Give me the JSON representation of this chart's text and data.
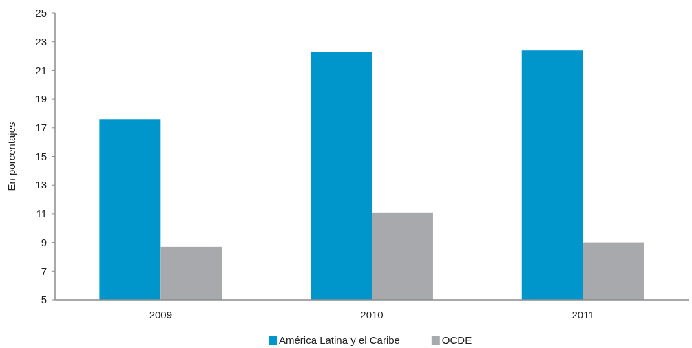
{
  "chart_data": {
    "type": "bar",
    "ylabel": "En porcentajes",
    "categories": [
      "2009",
      "2010",
      "2011"
    ],
    "series": [
      {
        "name": "América Latina y el Caribe",
        "color": "#0096cc",
        "values": [
          17.6,
          22.3,
          22.4
        ]
      },
      {
        "name": "OCDE",
        "color": "#a7a9ac",
        "values": [
          8.7,
          11.1,
          9.0
        ]
      }
    ],
    "ylim": [
      5,
      25
    ],
    "yticks": [
      5,
      7,
      9,
      11,
      13,
      15,
      17,
      19,
      21,
      23,
      25
    ],
    "grid": false,
    "legend": "bottom"
  }
}
